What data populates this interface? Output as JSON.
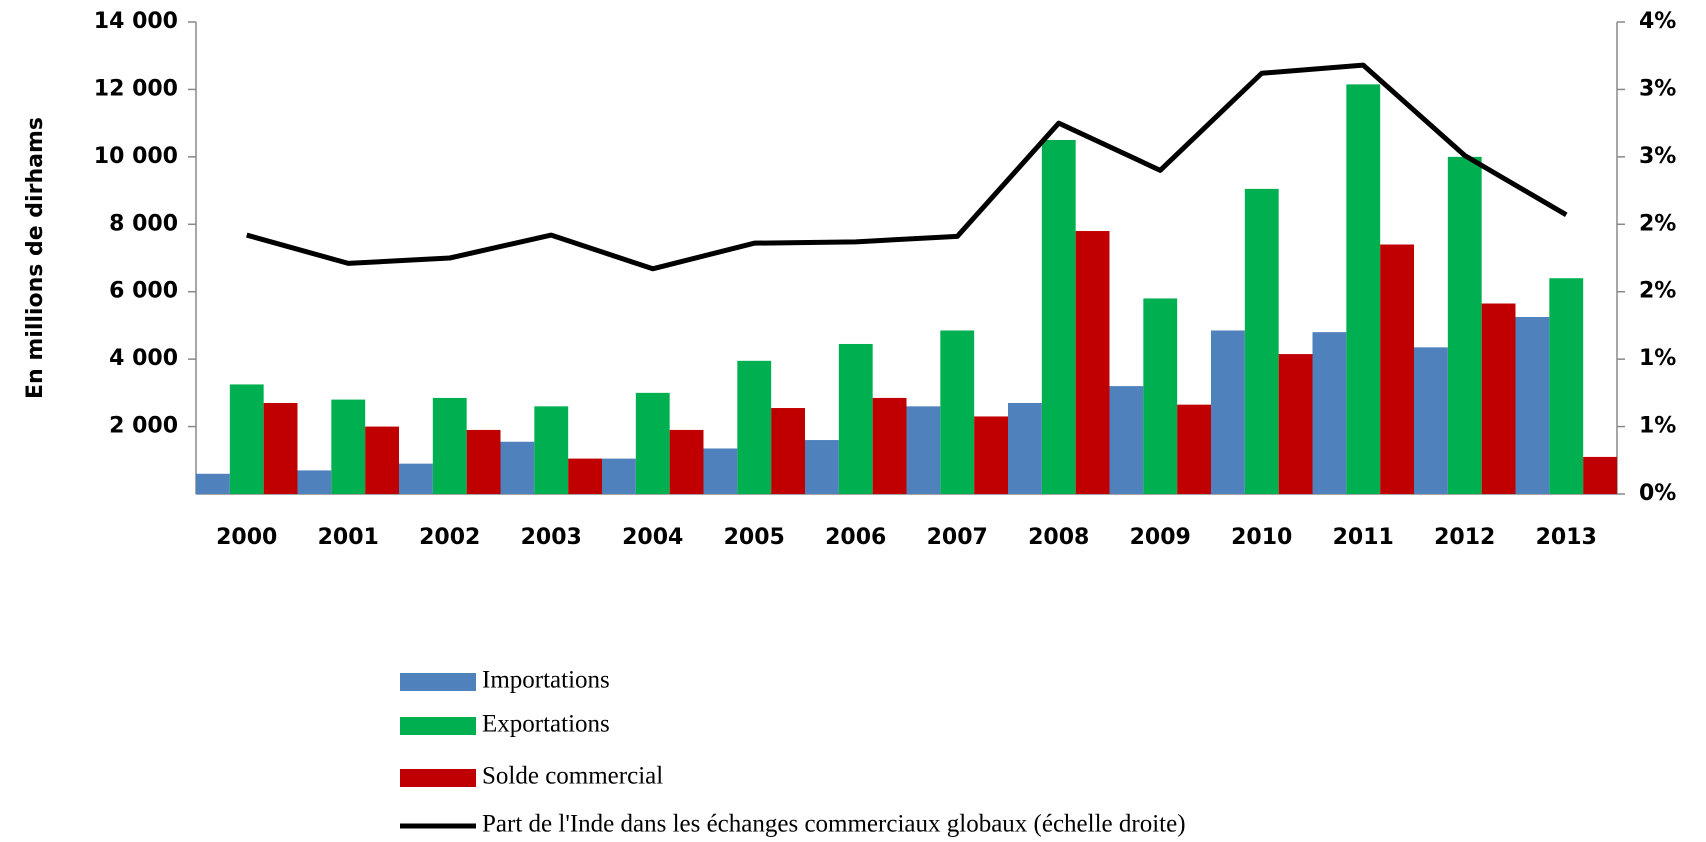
{
  "chart_data": {
    "type": "bar",
    "y_label": "En millions de dirhams",
    "categories": [
      "2000",
      "2001",
      "2002",
      "2003",
      "2004",
      "2005",
      "2006",
      "2007",
      "2008",
      "2009",
      "2010",
      "2011",
      "2012",
      "2013"
    ],
    "series": [
      {
        "name": "Importations",
        "color": "#4f81bd",
        "values": [
          600,
          700,
          900,
          1550,
          1050,
          1350,
          1600,
          2600,
          2700,
          3200,
          4850,
          4800,
          4350,
          5250
        ]
      },
      {
        "name": "Exportations",
        "color": "#00b050",
        "values": [
          3250,
          2800,
          2850,
          2600,
          3000,
          3950,
          4450,
          4850,
          10500,
          5800,
          9050,
          12150,
          10000,
          6400
        ]
      },
      {
        "name": "Solde commercial",
        "color": "#c00000",
        "values": [
          2700,
          2000,
          1900,
          1050,
          1900,
          2550,
          2850,
          2300,
          7800,
          2650,
          4150,
          7400,
          5650,
          1100
        ]
      },
      {
        "name": "Part de l'Inde dans les échanges commerciaux globaux (échelle droite)",
        "color": "#000000",
        "type": "line",
        "axis": "y2",
        "values": [
          1.92,
          1.71,
          1.75,
          1.92,
          1.67,
          1.86,
          1.87,
          1.91,
          2.75,
          2.4,
          3.12,
          3.18,
          2.51,
          2.07
        ]
      }
    ],
    "ylim": [
      0,
      14000
    ],
    "yticks": [
      {
        "value": 2000,
        "label": "2 000"
      },
      {
        "value": 4000,
        "label": "4 000"
      },
      {
        "value": 6000,
        "label": "6 000"
      },
      {
        "value": 8000,
        "label": "8 000"
      },
      {
        "value": 10000,
        "label": "10 000"
      },
      {
        "value": 12000,
        "label": "12 000"
      },
      {
        "value": 14000,
        "label": "14 000"
      }
    ],
    "y2lim": [
      0,
      3.5
    ],
    "y2ticks": [
      {
        "value": 0,
        "label": "0%"
      },
      {
        "value": 0.5,
        "label": "1%"
      },
      {
        "value": 1,
        "label": "1%"
      },
      {
        "value": 1.5,
        "label": "2%"
      },
      {
        "value": 2,
        "label": "2%"
      },
      {
        "value": 2.5,
        "label": "3%"
      },
      {
        "value": 3,
        "label": "3%"
      },
      {
        "value": 3.5,
        "label": "4%"
      }
    ],
    "grid": false,
    "legend": "bottom"
  }
}
